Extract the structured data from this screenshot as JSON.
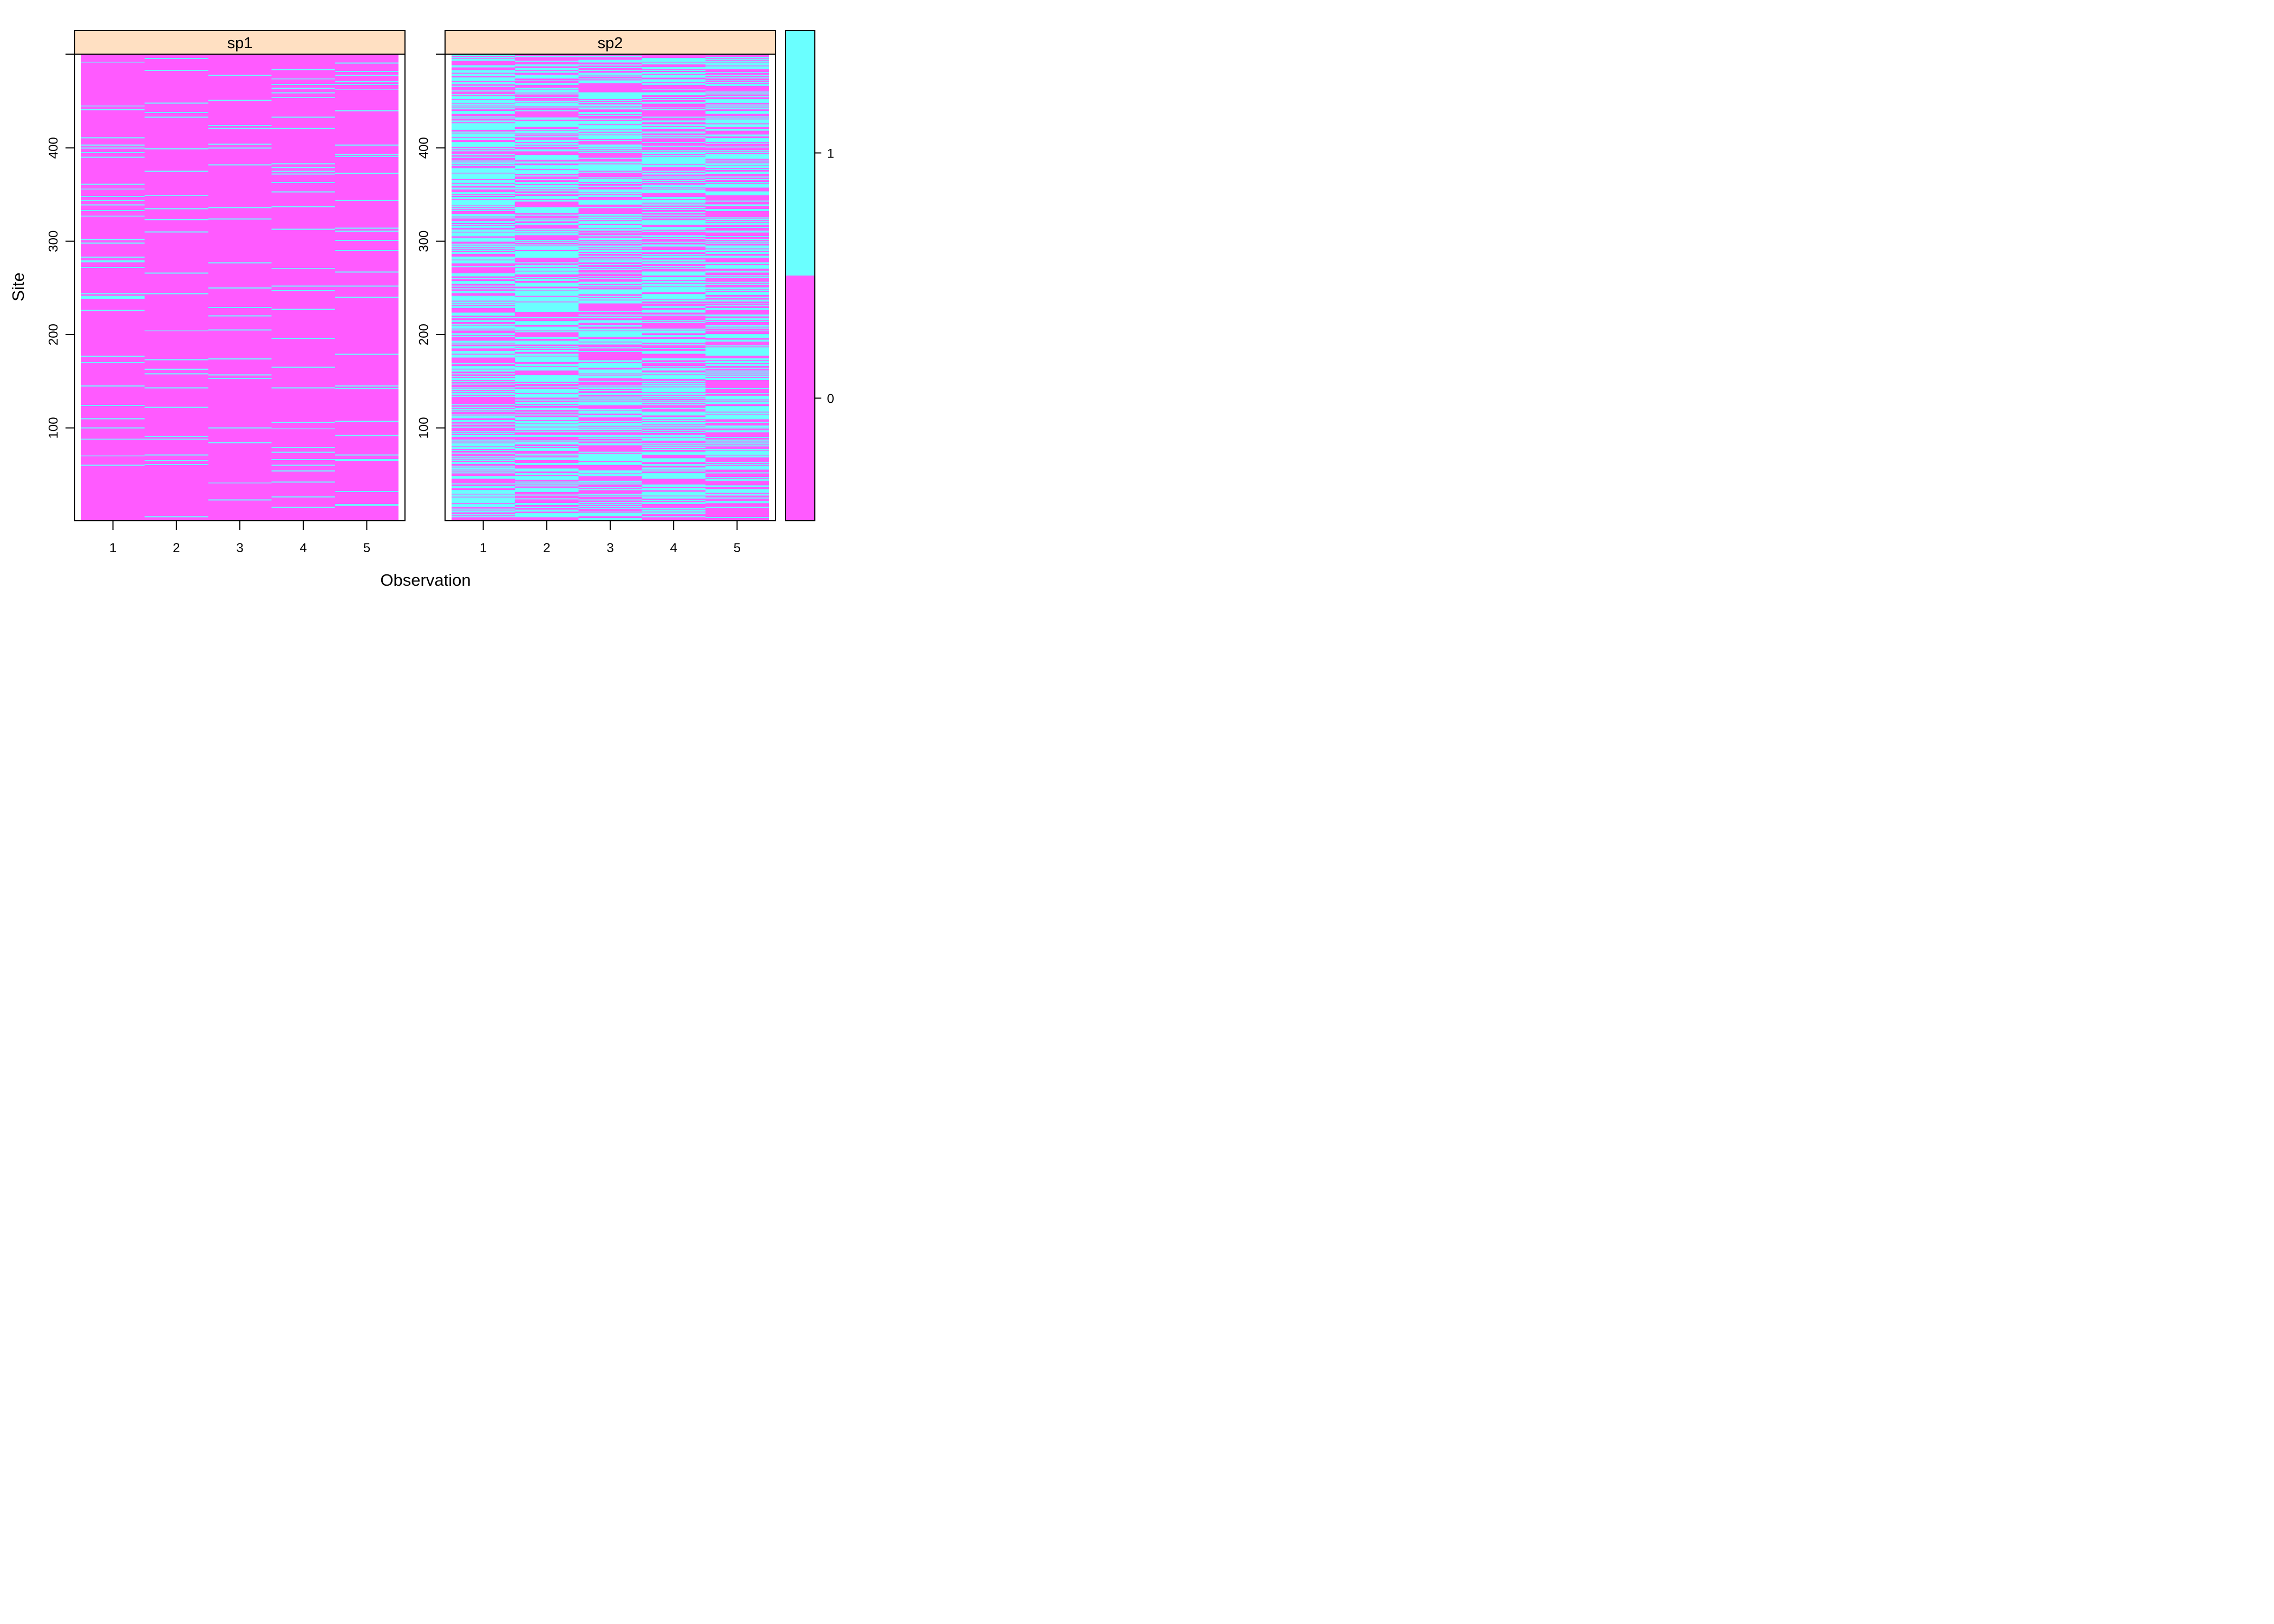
{
  "chart_data": {
    "type": "heatmap",
    "title": "",
    "xlabel": "Observation",
    "ylabel": "Site",
    "x_categories": [
      "1",
      "2",
      "3",
      "4",
      "5"
    ],
    "y_range": [
      1,
      500
    ],
    "y_ticks": [
      "100",
      "200",
      "300",
      "400"
    ],
    "panels": [
      {
        "name": "sp1",
        "approx_fraction_ones": [
          0.07,
          0.06,
          0.06,
          0.06,
          0.07
        ]
      },
      {
        "name": "sp2",
        "approx_fraction_ones": [
          0.48,
          0.5,
          0.49,
          0.47,
          0.46
        ]
      }
    ],
    "colorkey": {
      "levels": [
        "0",
        "1"
      ],
      "colors": {
        "0": "#ff5aff",
        "1": "#6affff"
      }
    },
    "strip_color": "#ffe0c2",
    "grid": false,
    "legend_position": "right"
  }
}
